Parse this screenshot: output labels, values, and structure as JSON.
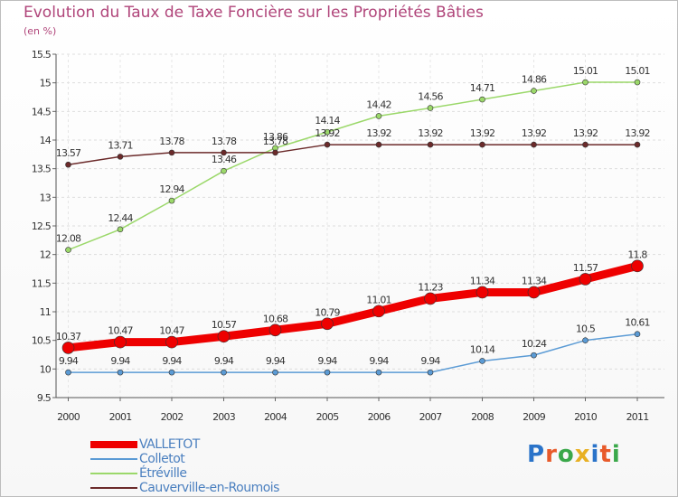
{
  "chart_data": {
    "type": "line",
    "title": "Evolution du Taux de Taxe Foncière sur les Propriétés Bâties",
    "unit_label": "(en %)",
    "xlabel": "",
    "ylabel": "",
    "ylim": [
      9.5,
      15.5
    ],
    "yticks": [
      "9.5",
      "10",
      "10.5",
      "11",
      "11.5",
      "12",
      "12.5",
      "13",
      "13.5",
      "14",
      "14.5",
      "15",
      "15.5"
    ],
    "categories": [
      "2000",
      "2001",
      "2002",
      "2003",
      "2004",
      "2005",
      "2006",
      "2007",
      "2008",
      "2009",
      "2010",
      "2011"
    ],
    "series": [
      {
        "name": "VALLETOT",
        "color": "#ee0000",
        "values": [
          10.37,
          10.47,
          10.47,
          10.57,
          10.68,
          10.79,
          11.01,
          11.23,
          11.34,
          11.34,
          11.57,
          11.8
        ]
      },
      {
        "name": "Colletot",
        "color": "#5b9bd5",
        "values": [
          9.94,
          9.94,
          9.94,
          9.94,
          9.94,
          9.94,
          9.94,
          9.94,
          10.14,
          10.24,
          10.5,
          10.61
        ]
      },
      {
        "name": "Étréville",
        "color": "#9bd86a",
        "values": [
          12.08,
          12.44,
          12.94,
          13.46,
          13.86,
          14.14,
          14.42,
          14.56,
          14.71,
          14.86,
          15.01,
          15.01
        ]
      },
      {
        "name": "Cauverville-en-Roumois",
        "color": "#6b2a2a",
        "values": [
          13.57,
          13.71,
          13.78,
          13.78,
          13.78,
          13.92,
          13.92,
          13.92,
          13.92,
          13.92,
          13.92,
          13.92
        ]
      }
    ],
    "data_labels": [
      [
        "10.37",
        "10.47",
        "10.47",
        "10.57",
        "10.68",
        "10.79",
        "11.01",
        "11.23",
        "11.34",
        "11.34",
        "11.57",
        "11.8"
      ],
      [
        "9.94",
        "9.94",
        "9.94",
        "9.94",
        "9.94",
        "9.94",
        "9.94",
        "9.94",
        "10.14",
        "10.24",
        "10.5",
        "10.61"
      ],
      [
        "12.08",
        "12.44",
        "12.94",
        "13.46",
        "13.86",
        "14.14",
        "14.42",
        "14.56",
        "14.71",
        "14.86",
        "15.01",
        "15.01"
      ],
      [
        "13.57",
        "13.71",
        "13.78",
        "13.78",
        "13.78",
        "13.92",
        "13.92",
        "13.92",
        "13.92",
        "13.92",
        "13.92",
        "13.92"
      ]
    ],
    "grid": true,
    "legend_position": "bottom-left"
  },
  "logo": {
    "text": "Proxiti"
  }
}
